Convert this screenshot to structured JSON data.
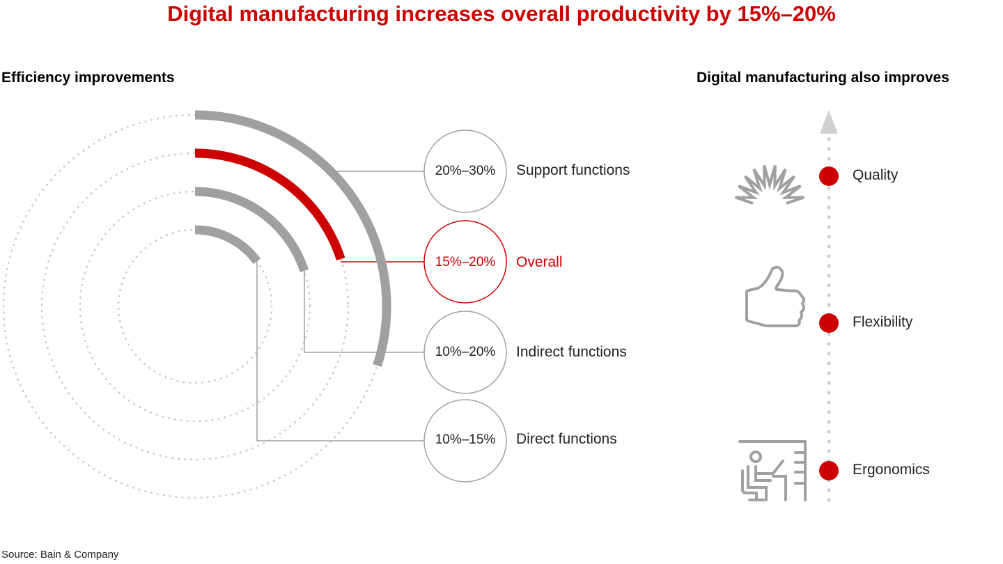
{
  "title": "Digital manufacturing increases overall productivity by 15%–20%",
  "left_heading": "Efficiency improvements",
  "right_heading": "Digital manufacturing also improves",
  "source": "Source: Bain & Company",
  "colors": {
    "accent": "#cc0000",
    "neutral": "#a0a0a0",
    "dotted": "#cccccc"
  },
  "efficiency": [
    {
      "range": "20%–30%",
      "label": "Support functions",
      "low": 20,
      "high": 30,
      "highlight": false
    },
    {
      "range": "15%–20%",
      "label": "Overall",
      "low": 15,
      "high": 20,
      "highlight": true
    },
    {
      "range": "10%–20%",
      "label": "Indirect functions",
      "low": 10,
      "high": 20,
      "highlight": false
    },
    {
      "range": "10%–15%",
      "label": "Direct functions",
      "low": 10,
      "high": 15,
      "highlight": false
    }
  ],
  "improves": [
    {
      "label": "Quality",
      "icon": "sunburst-icon"
    },
    {
      "label": "Flexibility",
      "icon": "thumbs-up-icon"
    },
    {
      "label": "Ergonomics",
      "icon": "person-at-desk-icon"
    }
  ]
}
